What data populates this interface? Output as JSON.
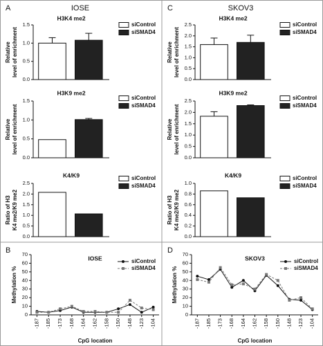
{
  "panels": [
    {
      "letter": "A",
      "title": "IOSE"
    },
    {
      "letter": "B"
    },
    {
      "letter": "C",
      "title": "SKOV3"
    },
    {
      "letter": "D"
    }
  ],
  "chart_data": [
    {
      "type": "bar",
      "title": "H3K4 me2",
      "ylabel": [
        "Relative",
        "level of enrichment"
      ],
      "ylim": [
        0,
        1.5
      ],
      "yticks": [
        {
          "value": 0,
          "label": "0.0"
        },
        0.5,
        {
          "value": 1,
          "label": "1.0"
        },
        1.5
      ],
      "series": [
        {
          "name": "siControl",
          "color": "#ffffff",
          "values": [
            1.0
          ],
          "errors": [
            0.15
          ]
        },
        {
          "name": "siSMAD4",
          "color": "#222222",
          "values": [
            1.08
          ],
          "errors": [
            0.19
          ]
        }
      ]
    },
    {
      "type": "bar",
      "title": "H3K9 me2",
      "ylabel": [
        "Relative",
        "level of enrichment"
      ],
      "ylim": [
        0,
        1.5
      ],
      "yticks": [
        {
          "value": 0,
          "label": "0.0"
        },
        0.5,
        {
          "value": 1,
          "label": "1.0"
        },
        1.5
      ],
      "series": [
        {
          "name": "siControl",
          "color": "#ffffff",
          "values": [
            0.48
          ]
        },
        {
          "name": "siSMAD4",
          "color": "#222222",
          "values": [
            1.01
          ],
          "errors": [
            0.03
          ]
        }
      ]
    },
    {
      "type": "bar",
      "title": "K4/K9",
      "ylabel": [
        "Ratio of H3",
        "K4 me2/K9 me2"
      ],
      "ylim": [
        0,
        2.5
      ],
      "yticks": [
        {
          "value": 0,
          "label": "0.0"
        },
        0.5,
        {
          "value": 1,
          "label": "1.0"
        },
        1.5,
        {
          "value": 2,
          "label": "2.0"
        },
        2.5
      ],
      "series": [
        {
          "name": "siControl",
          "color": "#ffffff",
          "values": [
            2.08
          ]
        },
        {
          "name": "siSMAD4",
          "color": "#222222",
          "values": [
            1.07
          ]
        }
      ]
    },
    {
      "type": "line",
      "title": "IOSE",
      "ylabel": [
        "Methylation %"
      ],
      "xlabel": "CpG location",
      "ylim": [
        0,
        70
      ],
      "yticks": [
        0,
        10,
        20,
        30,
        40,
        50,
        60,
        70
      ],
      "categories": [
        "-187",
        "-185",
        "-173",
        "-168",
        "-164",
        "-162",
        "-158",
        "-150",
        "-148",
        "-123",
        "-104"
      ],
      "series": [
        {
          "name": "siControl",
          "color": "#111111",
          "marker": "circle",
          "dashed": false,
          "values": [
            4,
            3,
            5,
            9,
            3,
            3,
            3,
            7,
            12,
            3,
            9
          ]
        },
        {
          "name": "siSMAD4",
          "color": "#777777",
          "marker": "square",
          "dashed": true,
          "values": [
            3,
            3,
            7,
            10,
            4,
            4,
            3,
            3,
            17,
            8,
            6
          ]
        }
      ]
    },
    {
      "type": "bar",
      "title": "H3K4 me2",
      "ylabel": [
        "Relative",
        "level of enrichment"
      ],
      "ylim": [
        0,
        2.5
      ],
      "yticks": [
        {
          "value": 0,
          "label": "0.0"
        },
        0.5,
        {
          "value": 1,
          "label": "1.0"
        },
        1.5,
        {
          "value": 2,
          "label": "2.0"
        },
        2.5
      ],
      "series": [
        {
          "name": "siControl",
          "color": "#ffffff",
          "values": [
            1.6
          ],
          "errors": [
            0.3
          ]
        },
        {
          "name": "siSMAD4",
          "color": "#222222",
          "values": [
            1.7
          ],
          "errors": [
            0.33
          ]
        }
      ]
    },
    {
      "type": "bar",
      "title": "H3K9 me2",
      "ylabel": [
        "Relative",
        "level of enrichment"
      ],
      "ylim": [
        0,
        2.5
      ],
      "yticks": [
        {
          "value": 0,
          "label": "0.0"
        },
        0.5,
        {
          "value": 1,
          "label": "1.0"
        },
        1.5,
        {
          "value": 2,
          "label": "2.0"
        },
        2.5
      ],
      "series": [
        {
          "name": "siControl",
          "color": "#ffffff",
          "values": [
            1.83
          ],
          "errors": [
            0.2
          ]
        },
        {
          "name": "siSMAD4",
          "color": "#222222",
          "values": [
            2.3
          ],
          "errors": [
            0.03
          ]
        }
      ]
    },
    {
      "type": "bar",
      "title": "K4/K9",
      "ylabel": [
        "Ratio of H3",
        "K4 me2/K9 me2"
      ],
      "ylim": [
        0,
        1
      ],
      "yticks": [
        {
          "value": 0,
          "label": "0.0"
        },
        0.2,
        0.4,
        0.6,
        0.8,
        {
          "value": 1,
          "label": "1.0"
        }
      ],
      "series": [
        {
          "name": "siControl",
          "color": "#ffffff",
          "values": [
            0.86
          ]
        },
        {
          "name": "siSMAD4",
          "color": "#222222",
          "values": [
            0.73
          ]
        }
      ]
    },
    {
      "type": "line",
      "title": "SKOV3",
      "ylabel": [
        "Methylation %"
      ],
      "xlabel": "CpG location",
      "ylim": [
        0,
        70
      ],
      "yticks": [
        0,
        10,
        20,
        30,
        40,
        50,
        60,
        70
      ],
      "categories": [
        "-187",
        "-185",
        "-173",
        "-168",
        "-164",
        "-162",
        "-158",
        "-150",
        "-148",
        "-123",
        "-104"
      ],
      "series": [
        {
          "name": "siControl",
          "color": "#111111",
          "marker": "circle",
          "dashed": false,
          "values": [
            45,
            41,
            53,
            32,
            40,
            28,
            46,
            34,
            18,
            17,
            6
          ]
        },
        {
          "name": "siSMAD4",
          "color": "#777777",
          "marker": "square",
          "dashed": true,
          "values": [
            41,
            38,
            55,
            35,
            36,
            30,
            47,
            40,
            17,
            20,
            7
          ]
        }
      ]
    }
  ]
}
